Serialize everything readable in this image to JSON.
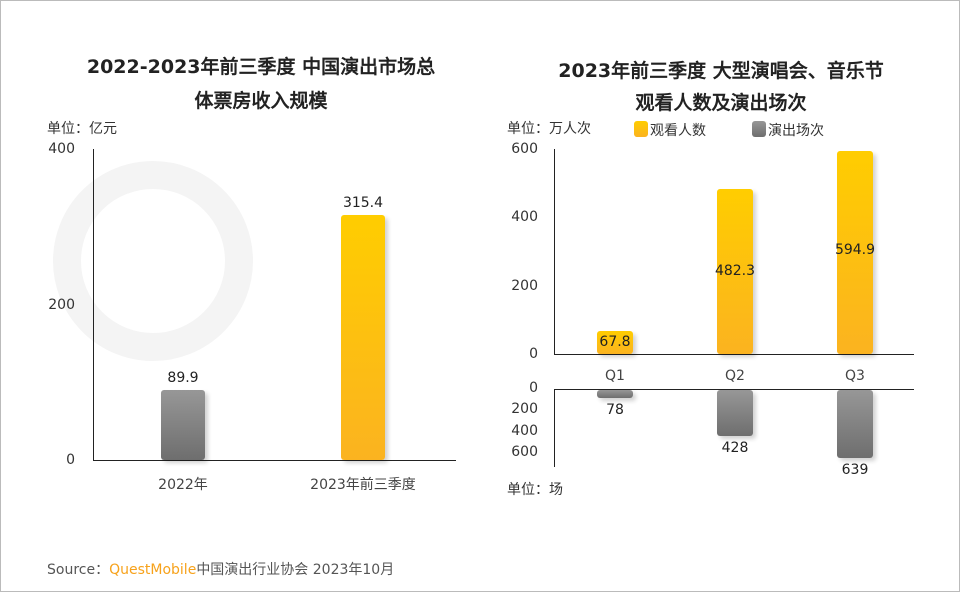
{
  "watermark": "QUEST MOBILE",
  "source": {
    "label": "Source：",
    "brand": "QuestMobile",
    "rest": "中国演出行业协会 2023年10月"
  },
  "colors": {
    "yellow": "#fbbd10",
    "gray": "#7f7f7f",
    "brand": "#f7a21b"
  },
  "chart_data": [
    {
      "type": "bar",
      "title_line1": "2022-2023年前三季度 中国演出市场总",
      "title_line2": "体票房收入规模",
      "unit": "单位：亿元",
      "categories": [
        "2022年",
        "2023年前三季度"
      ],
      "values": [
        89.9,
        315.4
      ],
      "value_labels": [
        "89.9",
        "315.4"
      ],
      "colors": [
        "gray",
        "yellow"
      ],
      "ylim": [
        0,
        400
      ],
      "yticks": [
        "0",
        "200",
        "400"
      ]
    },
    {
      "type": "bar",
      "title_line1": "2023年前三季度 大型演唱会、音乐节",
      "title_line2": "观看人数及演出场次",
      "unit_top": "单位：万人次",
      "unit_bottom": "单位：场",
      "categories": [
        "Q1",
        "Q2",
        "Q3"
      ],
      "series": [
        {
          "name": "观看人数",
          "values": [
            67.8,
            482.3,
            594.9
          ],
          "labels": [
            "67.8",
            "482.3",
            "594.9"
          ],
          "ylim": [
            0,
            600
          ],
          "yticks": [
            "0",
            "200",
            "400",
            "600"
          ]
        },
        {
          "name": "演出场次",
          "values": [
            78,
            428,
            639
          ],
          "labels": [
            "78",
            "428",
            "639"
          ],
          "ylim": [
            0,
            600
          ],
          "yticks": [
            "0",
            "200",
            "400",
            "600"
          ],
          "direction": "down"
        }
      ],
      "legend_placement": "top"
    }
  ]
}
